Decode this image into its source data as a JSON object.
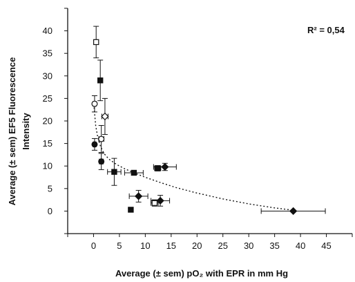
{
  "chart_data": {
    "type": "scatter",
    "title": "",
    "xlabel": "Average (± sem) pO₂ with EPR in mm Hg",
    "ylabel_line1": "Average (± sem) EF5 Fluorescence",
    "ylabel_line2": "Intensity",
    "annotation": "R² = 0,54",
    "xlim": [
      -5,
      50
    ],
    "ylim": [
      -5,
      45
    ],
    "x_ticks": [
      0,
      5,
      10,
      15,
      20,
      25,
      30,
      35,
      40,
      45
    ],
    "y_ticks": [
      0,
      5,
      10,
      15,
      20,
      25,
      30,
      35,
      40
    ],
    "grid": false,
    "legend": "none",
    "colors": {
      "marker": "#111111",
      "curve": "#111111",
      "axis": "#111111"
    },
    "points": [
      {
        "x": 0.5,
        "y": 37.5,
        "xerr": 0.3,
        "yerr": 3.5,
        "marker": "open-square"
      },
      {
        "x": 1.3,
        "y": 29.0,
        "xerr": 0.2,
        "yerr": 4.5,
        "marker": "filled-square"
      },
      {
        "x": 0.2,
        "y": 23.8,
        "xerr": 0.3,
        "yerr": 1.8,
        "marker": "open-circle"
      },
      {
        "x": 2.2,
        "y": 21.0,
        "xerr": 0.6,
        "yerr": 4.0,
        "marker": "open-diamond"
      },
      {
        "x": 1.5,
        "y": 16.0,
        "xerr": 0.5,
        "yerr": 3.0,
        "marker": "open-circle"
      },
      {
        "x": 0.2,
        "y": 14.8,
        "xerr": 0.3,
        "yerr": 1.3,
        "marker": "filled-circle"
      },
      {
        "x": 1.5,
        "y": 11.0,
        "xerr": 0.4,
        "yerr": 1.8,
        "marker": "filled-circle"
      },
      {
        "x": 4.0,
        "y": 8.7,
        "xerr": 1.3,
        "yerr": 3.0,
        "marker": "filled-square"
      },
      {
        "x": 7.8,
        "y": 8.5,
        "xerr": 1.8,
        "yerr": 0.5,
        "marker": "filled-square"
      },
      {
        "x": 12.4,
        "y": 9.5,
        "xerr": 0.6,
        "yerr": 0.6,
        "marker": "filled-square"
      },
      {
        "x": 13.8,
        "y": 9.8,
        "xerr": 2.2,
        "yerr": 0.8,
        "marker": "filled-diamond"
      },
      {
        "x": 8.7,
        "y": 3.3,
        "xerr": 1.8,
        "yerr": 1.3,
        "marker": "filled-diamond"
      },
      {
        "x": 11.8,
        "y": 1.8,
        "xerr": 0.7,
        "yerr": 0.7,
        "marker": "open-square"
      },
      {
        "x": 12.9,
        "y": 2.3,
        "xerr": 1.8,
        "yerr": 1.2,
        "marker": "filled-diamond"
      },
      {
        "x": 7.2,
        "y": 0.3,
        "xerr": 0.4,
        "yerr": 0.3,
        "marker": "filled-square"
      },
      {
        "x": 38.6,
        "y": 0.0,
        "xerr": 6.2,
        "yerr": 0.0,
        "marker": "filled-diamond"
      }
    ],
    "fit_curve": {
      "style": "dotted",
      "x": [
        0.1,
        0.4,
        0.8,
        1.3,
        2,
        3,
        4.5,
        6,
        8,
        10,
        13,
        16,
        20,
        25,
        30,
        35,
        38.6
      ],
      "y": [
        23.0,
        19.0,
        16.5,
        14.5,
        12.8,
        11.5,
        10.3,
        9.4,
        8.4,
        7.5,
        6.3,
        5.2,
        4.0,
        2.7,
        1.6,
        0.7,
        0.2
      ]
    }
  }
}
